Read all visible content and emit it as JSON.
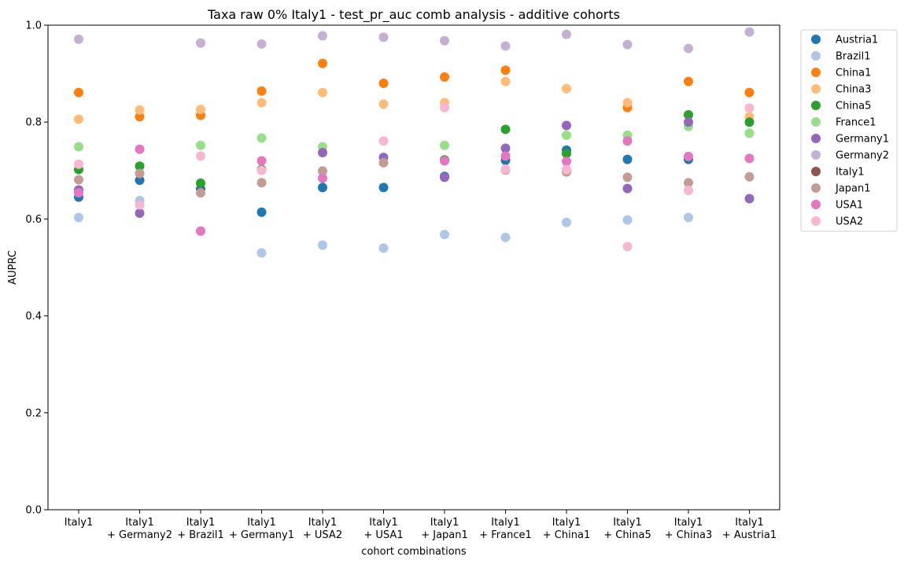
{
  "chart_data": {
    "type": "scatter",
    "title": "Taxa raw 0% Italy1 - test_pr_auc comb analysis - additive cohorts",
    "xlabel": "cohort combinations",
    "ylabel": "AUPRC",
    "ylim": [
      0.0,
      1.0
    ],
    "yticks": [
      "0.0",
      "0.2",
      "0.4",
      "0.6",
      "0.8",
      "1.0"
    ],
    "grid": false,
    "legend_position": "outside-top-right",
    "categories": [
      [
        "Italy1"
      ],
      [
        "Italy1",
        "+ Germany2"
      ],
      [
        "Italy1",
        "+ Brazil1"
      ],
      [
        "Italy1",
        "+ Germany1"
      ],
      [
        "Italy1",
        "+ USA2"
      ],
      [
        "Italy1",
        "+ USA1"
      ],
      [
        "Italy1",
        "+ Japan1"
      ],
      [
        "Italy1",
        "+ France1"
      ],
      [
        "Italy1",
        "+ China1"
      ],
      [
        "Italy1",
        "+ China5"
      ],
      [
        "Italy1",
        "+ China3"
      ],
      [
        "Italy1",
        "+ Austria1"
      ]
    ],
    "series": [
      {
        "name": "Austria1",
        "color": "#1f77b4",
        "values": [
          0.645,
          0.68,
          0.662,
          0.614,
          0.665,
          0.665,
          0.688,
          0.721,
          0.742,
          0.723,
          0.723,
          null
        ]
      },
      {
        "name": "Brazil1",
        "color": "#aec7e8",
        "values": [
          0.603,
          0.638,
          null,
          0.53,
          0.546,
          0.54,
          0.568,
          0.562,
          0.593,
          0.598,
          0.603,
          null
        ]
      },
      {
        "name": "China1",
        "color": "#ff7f0e",
        "values": [
          0.861,
          0.811,
          0.814,
          0.864,
          0.921,
          0.88,
          0.893,
          0.907,
          null,
          0.83,
          0.884,
          0.861
        ]
      },
      {
        "name": "China3",
        "color": "#ffbb78",
        "values": [
          0.806,
          0.825,
          0.826,
          0.84,
          0.861,
          0.837,
          0.84,
          0.884,
          0.869,
          0.84,
          null,
          0.811
        ]
      },
      {
        "name": "China5",
        "color": "#2ca02c",
        "values": [
          0.702,
          0.709,
          0.674,
          0.702,
          null,
          null,
          0.722,
          0.785,
          0.735,
          null,
          0.815,
          0.8
        ]
      },
      {
        "name": "France1",
        "color": "#98df8a",
        "values": [
          0.749,
          null,
          0.752,
          0.767,
          0.749,
          null,
          0.752,
          null,
          0.773,
          0.773,
          0.791,
          0.777
        ]
      },
      {
        "name": "Germany1",
        "color": "#9467bd",
        "values": [
          0.66,
          0.612,
          null,
          null,
          0.737,
          0.727,
          0.686,
          0.746,
          0.793,
          0.663,
          0.8,
          0.642
        ]
      },
      {
        "name": "Germany2",
        "color": "#c5b0d5",
        "values": [
          0.971,
          null,
          0.963,
          0.961,
          0.978,
          0.975,
          0.968,
          0.957,
          0.981,
          0.96,
          0.952,
          0.986
        ]
      },
      {
        "name": "Italy1",
        "color": "#8c564b",
        "values": [
          null,
          null,
          null,
          null,
          null,
          null,
          null,
          null,
          null,
          null,
          null,
          null
        ]
      },
      {
        "name": "Japan1",
        "color": "#c49c94",
        "values": [
          0.681,
          0.694,
          0.654,
          0.675,
          0.699,
          0.716,
          null,
          0.701,
          0.697,
          0.686,
          0.675,
          0.687
        ]
      },
      {
        "name": "USA1",
        "color": "#e377c2",
        "values": [
          0.654,
          0.744,
          0.575,
          0.72,
          0.684,
          null,
          0.72,
          0.73,
          0.719,
          0.761,
          0.729,
          0.725
        ]
      },
      {
        "name": "USA2",
        "color": "#f7b6d2",
        "values": [
          0.713,
          0.629,
          0.73,
          0.7,
          null,
          0.761,
          0.83,
          0.703,
          0.702,
          0.543,
          0.659,
          0.829
        ]
      }
    ]
  }
}
